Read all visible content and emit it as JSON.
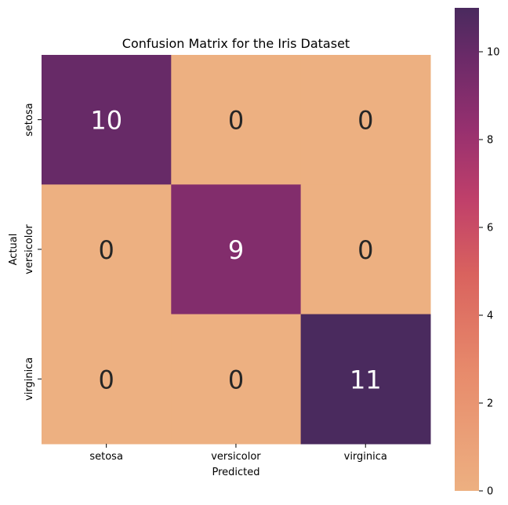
{
  "chart_data": {
    "type": "heatmap",
    "title": "Confusion Matrix for the Iris Dataset",
    "xlabel": "Predicted",
    "ylabel": "Actual",
    "x_categories": [
      "setosa",
      "versicolor",
      "virginica"
    ],
    "y_categories": [
      "setosa",
      "versicolor",
      "virginica"
    ],
    "values": [
      [
        10,
        0,
        0
      ],
      [
        0,
        9,
        0
      ],
      [
        0,
        0,
        11
      ]
    ],
    "colorbar": {
      "vmin": 0,
      "vmax": 11,
      "ticks": [
        0,
        2,
        4,
        6,
        8,
        10
      ],
      "colormap": "flare",
      "low_color": "#edb081",
      "high_color": "#4a2a5e"
    },
    "annotation_colors": {
      "on_dark": "#ffffff",
      "on_light": "#262626"
    }
  }
}
